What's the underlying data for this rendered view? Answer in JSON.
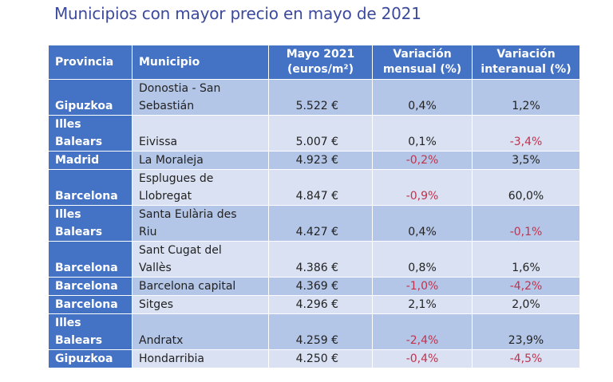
{
  "title": "Municipios con mayor precio en mayo de 2021",
  "table": {
    "headers": [
      {
        "line1": "Provincia",
        "line2": ""
      },
      {
        "line1": "Municipio",
        "line2": ""
      },
      {
        "line1": "Mayo 2021",
        "line2": "(euros/m²)"
      },
      {
        "line1": "Variación",
        "line2": "mensual (%)"
      },
      {
        "line1": "Variación",
        "line2": "interanual (%)"
      }
    ],
    "rows": [
      {
        "provincia": [
          "Gipuzkoa"
        ],
        "municipio": [
          "Donostia - San",
          "Sebastián"
        ],
        "precio": "5.522 €",
        "mensual": "0,4%",
        "interanual": "1,2%"
      },
      {
        "provincia": [
          "Illes",
          "Balears"
        ],
        "municipio": [
          "Eivissa"
        ],
        "precio": "5.007 €",
        "mensual": "0,1%",
        "interanual": "-3,4%"
      },
      {
        "provincia": [
          "Madrid"
        ],
        "municipio": [
          "La Moraleja"
        ],
        "precio": "4.923 €",
        "mensual": "-0,2%",
        "interanual": "3,5%"
      },
      {
        "provincia": [
          "Barcelona"
        ],
        "municipio": [
          "Esplugues de",
          "Llobregat"
        ],
        "precio": "4.847 €",
        "mensual": "-0,9%",
        "interanual": "60,0%"
      },
      {
        "provincia": [
          "Illes",
          "Balears"
        ],
        "municipio": [
          "Santa Eulària des",
          "Riu"
        ],
        "precio": "4.427 €",
        "mensual": "0,4%",
        "interanual": "-0,1%"
      },
      {
        "provincia": [
          "Barcelona"
        ],
        "municipio": [
          "Sant Cugat del",
          "Vallès"
        ],
        "precio": "4.386 €",
        "mensual": "0,8%",
        "interanual": "1,6%"
      },
      {
        "provincia": [
          "Barcelona"
        ],
        "municipio": [
          "Barcelona capital"
        ],
        "precio": "4.369 €",
        "mensual": "-1,0%",
        "interanual": "-4,2%"
      },
      {
        "provincia": [
          "Barcelona"
        ],
        "municipio": [
          "Sitges"
        ],
        "precio": "4.296 €",
        "mensual": "2,1%",
        "interanual": "2,0%"
      },
      {
        "provincia": [
          "Illes",
          "Balears"
        ],
        "municipio": [
          "Andratx"
        ],
        "precio": "4.259 €",
        "mensual": "-2,4%",
        "interanual": "23,9%"
      },
      {
        "provincia": [
          "Gipuzkoa"
        ],
        "municipio": [
          "Hondarribia"
        ],
        "precio": "4.250 €",
        "mensual": "-0,4%",
        "interanual": "-4,5%"
      }
    ]
  },
  "colors": {
    "header_bg": "#4472c4",
    "row_odd": "#b4c6e7",
    "row_even": "#d9e1f2",
    "negative_text": "#c0334d",
    "title_text": "#3b4a9c"
  }
}
